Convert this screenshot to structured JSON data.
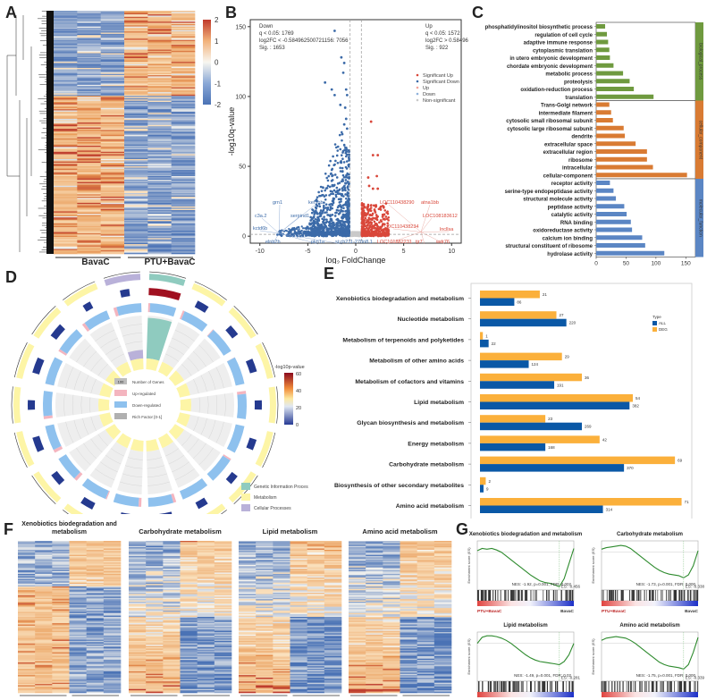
{
  "panel_labels": [
    "A",
    "B",
    "C",
    "D",
    "E",
    "F",
    "G"
  ],
  "chart_data": [
    {
      "id": "A",
      "type": "heatmap",
      "title": "",
      "groups": [
        "BavaC",
        "PTU+BavaC"
      ],
      "columns_per_group": 3,
      "colorbar": {
        "ticks": [
          2,
          1,
          0,
          -1,
          -2
        ],
        "min": -2,
        "max": 2,
        "low_color": "#4a72b5",
        "mid_color": "#f5f5f0",
        "high_color": "#c8523a"
      },
      "blocks": [
        {
          "rows_fraction": 0.35,
          "BavaC": "down",
          "PTU+BavaC": "up"
        },
        {
          "rows_fraction": 0.65,
          "BavaC": "up",
          "PTU+BavaC": "down"
        }
      ]
    },
    {
      "id": "B",
      "type": "scatter",
      "title": "",
      "xlabel": "log2 FoldChange",
      "ylabel": "-log10q-value",
      "xlim": [
        -11,
        11
      ],
      "ylim": [
        -5,
        155
      ],
      "xticks": [
        -10,
        -5,
        0,
        5,
        10
      ],
      "yticks": [
        0,
        50,
        100,
        150
      ],
      "thresholds": {
        "x": [
          -0.585,
          0.585
        ],
        "y": 1.3
      },
      "annotation_down": [
        "Down",
        "q < 0.05: 1769",
        "log2FC < -0.584962500721156: 7056",
        "Sig. : 1653"
      ],
      "annotation_up": [
        "Up",
        "q < 0.05: 1572",
        "log2FC > 0.58496",
        "Sig. : 922"
      ],
      "legend": [
        {
          "label": "Significant Up",
          "color": "#d9473a"
        },
        {
          "label": "Significant Down",
          "color": "#3b6aa8"
        },
        {
          "label": "Up",
          "color": "#f2a49b"
        },
        {
          "label": "Down",
          "color": "#8fb2dc"
        },
        {
          "label": "Non-significant",
          "color": "#c9c9c9"
        }
      ],
      "highlight_points_down": [
        {
          "x": -2.2,
          "y": 147
        },
        {
          "x": -1.5,
          "y": 128
        },
        {
          "x": -1.2,
          "y": 124
        },
        {
          "x": -1.3,
          "y": 117
        },
        {
          "x": -3.2,
          "y": 110
        },
        {
          "x": -2.5,
          "y": 105
        },
        {
          "x": -1.0,
          "y": 105
        },
        {
          "x": -2.2,
          "y": 101
        },
        {
          "x": -0.9,
          "y": 101
        },
        {
          "x": -1.1,
          "y": 92
        },
        {
          "x": -1.6,
          "y": 94
        },
        {
          "x": -1.0,
          "y": 84
        },
        {
          "x": -1.2,
          "y": 80
        },
        {
          "x": -0.9,
          "y": 77
        },
        {
          "x": -1.4,
          "y": 73
        }
      ],
      "highlight_points_up": [
        {
          "x": 1.6,
          "y": 82
        },
        {
          "x": 1.8,
          "y": 58
        },
        {
          "x": 2.3,
          "y": 58
        },
        {
          "x": 1.3,
          "y": 42
        },
        {
          "x": 2.2,
          "y": 43
        },
        {
          "x": 1.8,
          "y": 34
        },
        {
          "x": 2.3,
          "y": 34
        },
        {
          "x": 1.4,
          "y": 36
        }
      ],
      "gene_labels_down": [
        "grn1",
        "kef1bb",
        "c3a.2",
        "serpind1",
        "kctd6b",
        "elnb2b",
        "pkn1a",
        "si:ch211-270n8.1"
      ],
      "gene_labels_up": [
        "LOC110438290",
        "atna1bb",
        "LOC108183612",
        "LOC110438234",
        "lncllsa",
        "LOC101882231",
        "tjr7",
        "wdr76"
      ]
    },
    {
      "id": "C",
      "type": "bar",
      "orientation": "horizontal",
      "xlabel": "ListHits",
      "xlim": [
        0,
        160
      ],
      "xticks": [
        0,
        50,
        100,
        150
      ],
      "groups": [
        {
          "name": "biological_process",
          "color": "#6f9a3f",
          "categories": [
            "phosphatidylinositol biosynthetic process",
            "regulation of cell cycle",
            "adaptive immune response",
            "cytoplasmic translation",
            "in utero embryonic development",
            "chordate embryonic development",
            "metabolic process",
            "proteolysis",
            "oxidation-reduction process",
            "translation"
          ],
          "values": [
            15,
            18,
            20,
            22,
            23,
            29,
            45,
            56,
            63,
            96
          ]
        },
        {
          "name": "cellular_component",
          "color": "#d97b33",
          "categories": [
            "Trans-Golgi network",
            "intermediate filament",
            "cytosolic small ribosomal subunit",
            "cytosolic large ribosomal subunit",
            "dendrite",
            "extracellular space",
            "extracellular region",
            "ribosome",
            "intracellular",
            "cellular-component"
          ],
          "values": [
            22,
            25,
            28,
            46,
            48,
            66,
            85,
            85,
            95,
            152
          ]
        },
        {
          "name": "molecular_function",
          "color": "#5b86c4",
          "categories": [
            "receptor activity",
            "serine-type endopeptidase activity",
            "structural molecule activity",
            "peptidase activity",
            "catalytic activity",
            "RNA binding",
            "oxidoreductase activity",
            "calcium ion binding",
            "structural constituent of ribosome",
            "hydrolase activity"
          ],
          "values": [
            23,
            29,
            33,
            47,
            51,
            58,
            60,
            77,
            82,
            114
          ]
        }
      ]
    },
    {
      "id": "D",
      "type": "pie",
      "subtype": "circos",
      "colorbar": {
        "title": "-log10p-value",
        "ticks": [
          60,
          40,
          20,
          0
        ]
      },
      "inner_legend": [
        "Number of Genes",
        "Up-regulated",
        "Down-regulated",
        "Rich Factor [0-1]"
      ],
      "inner_legend_swatch_value": "100",
      "category_legend": [
        {
          "label": "Genetic Information Processing",
          "color": "#8fcbbf"
        },
        {
          "label": "Metabolism",
          "color": "#fdf5a6"
        },
        {
          "label": "Cellular Processes",
          "color": "#b9b1d9"
        }
      ],
      "sectors": 18
    },
    {
      "id": "E",
      "type": "bar",
      "orientation": "horizontal",
      "xlabel": "Percent of Genes(%)",
      "xticks": [
        0.0,
        2.5,
        5.0,
        7.5
      ],
      "xlim": [
        0,
        9.4
      ],
      "legend_title": "Type",
      "legend": [
        {
          "label": "ALL",
          "color": "#0a58a6"
        },
        {
          "label": "DEG",
          "color": "#fbb03b"
        }
      ],
      "categories": [
        "Xenobiotics biodegradation and metabolism",
        "Nucleotide metabolism",
        "Metabolism of terpenoids and polyketides",
        "Metabolism of other amino acids",
        "Metabolism of cofactors and vitamins",
        "Lipid metabolism",
        "Glycan biosynthesis and metabolism",
        "Energy metabolism",
        "Carbohydrate metabolism",
        "Biosynthesis of other secondary metabolites",
        "Amino acid metabolism"
      ],
      "series": [
        {
          "name": "DEG",
          "counts": [
            21,
            27,
            1,
            29,
            36,
            54,
            23,
            42,
            69,
            2,
            71
          ],
          "percent": [
            2.7,
            3.45,
            0.13,
            3.7,
            4.6,
            6.9,
            2.95,
            5.4,
            8.8,
            0.26,
            9.1
          ]
        },
        {
          "name": "ALL",
          "counts": [
            86,
            220,
            22,
            124,
            191,
            382,
            269,
            168,
            370,
            9,
            314
          ],
          "percent": [
            1.55,
            3.9,
            0.39,
            2.2,
            3.35,
            6.75,
            4.6,
            2.95,
            6.5,
            0.16,
            5.55
          ]
        }
      ]
    },
    {
      "id": "F",
      "type": "heatmap",
      "panels": [
        {
          "title": "Xenobiotics biodegradation and metabolism",
          "groups": [
            "BavaC",
            "PTU+BavaC"
          ]
        },
        {
          "title": "Carbohydrate metabolism",
          "groups": [
            "BavaC",
            "PTU+BavaC"
          ]
        },
        {
          "title": "Lipid metabolism",
          "groups": [
            "BavaC",
            "PTU+BavaC"
          ]
        },
        {
          "title": "Amino acid metabolism",
          "groups": [
            "BavaC",
            "PTU+BavaC"
          ]
        }
      ]
    },
    {
      "id": "G",
      "type": "line",
      "ylabel": "Enrichment score (ES)",
      "panels": [
        {
          "title": "Xenobiotics biodegradation and metabolism",
          "stats": "NES: -1.92, p=0.001, FDR: 0.002",
          "es": "ES: -0.456",
          "left": "PTU+BavaC",
          "right": "BavaC",
          "curve": [
            0.02,
            0.05,
            0.04,
            0.05,
            0.03,
            0.0,
            -0.05,
            -0.1,
            -0.15,
            -0.2,
            -0.25,
            -0.3,
            -0.34,
            -0.38,
            -0.4,
            -0.41,
            -0.43,
            -0.456,
            -0.35,
            -0.15,
            0.05
          ]
        },
        {
          "title": "Carbohydrate metabolism",
          "stats": "NES: -1.73, p=0.001, FDR: 0.000",
          "es": "ES: -0.338",
          "left": "PTU+BavaC",
          "right": "BavaC",
          "curve": [
            0.04,
            0.06,
            0.07,
            0.08,
            0.09,
            0.08,
            0.05,
            0.0,
            -0.05,
            -0.1,
            -0.15,
            -0.2,
            -0.24,
            -0.27,
            -0.29,
            -0.3,
            -0.31,
            -0.338,
            -0.3,
            -0.18,
            0.02
          ]
        },
        {
          "title": "Lipid metabolism",
          "stats": "NES: -1.49, p=0.001, FDR: 0.02",
          "es": "ES: -0.281",
          "left": "PTU+BavaC",
          "right": "BavaC",
          "curve": [
            0.0,
            0.08,
            0.1,
            0.1,
            0.09,
            0.07,
            0.04,
            0.0,
            -0.05,
            -0.1,
            -0.15,
            -0.19,
            -0.22,
            -0.24,
            -0.25,
            -0.26,
            -0.27,
            -0.281,
            -0.24,
            -0.15,
            0.0
          ]
        },
        {
          "title": "Amino acid metabolism",
          "stats": "NES: -1.75, p=0.001, FDR: 0.000",
          "es": "ES: -0.339",
          "left": "PTU+BavaC",
          "right": "BavaC",
          "curve": [
            0.04,
            0.07,
            0.08,
            0.09,
            0.08,
            0.07,
            0.04,
            0.0,
            -0.05,
            -0.1,
            -0.15,
            -0.2,
            -0.25,
            -0.28,
            -0.3,
            -0.31,
            -0.32,
            -0.339,
            -0.28,
            -0.12,
            0.08
          ]
        }
      ]
    }
  ]
}
